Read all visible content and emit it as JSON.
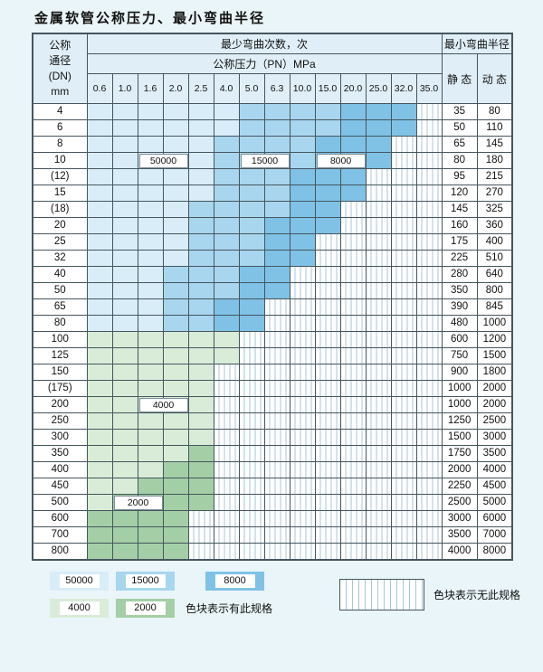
{
  "title": "金属软管公称压力、最小弯曲半径",
  "colors": {
    "page_bg": "#eaf5fa",
    "head_bg": "#e0eff7",
    "border": "#45565e",
    "stripe_line": "#a9c6d4",
    "c50000": "#d8edf8",
    "c15000": "#a8d6ee",
    "c8000": "#7fc2e6",
    "c4000": "#d8ecd8",
    "c2000": "#a4cfa6"
  },
  "table": {
    "header": {
      "dn_lines": [
        "公称",
        "通径",
        "(DN)",
        "mm"
      ],
      "bend_cycles": "最少弯曲次数，次",
      "pressure": "公称压力（PN）MPa",
      "pressures": [
        "0.6",
        "1.0",
        "1.6",
        "2.0",
        "2.5",
        "4.0",
        "5.0",
        "6.3",
        "10.0",
        "15.0",
        "20.0",
        "25.0",
        "32.0",
        "35.0"
      ],
      "radius": "最小弯曲半径",
      "static": "静 态",
      "dynamic": "动 态"
    },
    "rows": [
      {
        "dn": "4",
        "static": "35",
        "dynamic": "80",
        "segments": [
          [
            "c50000",
            6
          ],
          [
            "c15000",
            4
          ],
          [
            "c8000",
            3
          ]
        ]
      },
      {
        "dn": "6",
        "static": "50",
        "dynamic": "110",
        "segments": [
          [
            "c50000",
            6
          ],
          [
            "c15000",
            4
          ],
          [
            "c8000",
            3
          ]
        ]
      },
      {
        "dn": "8",
        "static": "65",
        "dynamic": "145",
        "segments": [
          [
            "c50000",
            5
          ],
          [
            "c15000",
            4
          ],
          [
            "c8000",
            3
          ]
        ]
      },
      {
        "dn": "10",
        "static": "80",
        "dynamic": "180",
        "segments": [
          [
            "c50000",
            5
          ],
          [
            "c15000",
            4
          ],
          [
            "c8000",
            3
          ]
        ]
      },
      {
        "dn": "(12)",
        "static": "95",
        "dynamic": "215",
        "segments": [
          [
            "c50000",
            5
          ],
          [
            "c15000",
            3
          ],
          [
            "c8000",
            3
          ]
        ]
      },
      {
        "dn": "15",
        "static": "120",
        "dynamic": "270",
        "segments": [
          [
            "c50000",
            5
          ],
          [
            "c15000",
            3
          ],
          [
            "c8000",
            3
          ]
        ]
      },
      {
        "dn": "(18)",
        "static": "145",
        "dynamic": "325",
        "segments": [
          [
            "c50000",
            4
          ],
          [
            "c15000",
            4
          ],
          [
            "c8000",
            2
          ]
        ]
      },
      {
        "dn": "20",
        "static": "160",
        "dynamic": "360",
        "segments": [
          [
            "c50000",
            4
          ],
          [
            "c15000",
            3
          ],
          [
            "c8000",
            3
          ]
        ]
      },
      {
        "dn": "25",
        "static": "175",
        "dynamic": "400",
        "segments": [
          [
            "c50000",
            4
          ],
          [
            "c15000",
            3
          ],
          [
            "c8000",
            2
          ]
        ]
      },
      {
        "dn": "32",
        "static": "225",
        "dynamic": "510",
        "segments": [
          [
            "c50000",
            4
          ],
          [
            "c15000",
            3
          ],
          [
            "c8000",
            2
          ]
        ]
      },
      {
        "dn": "40",
        "static": "280",
        "dynamic": "640",
        "segments": [
          [
            "c50000",
            3
          ],
          [
            "c15000",
            3
          ],
          [
            "c8000",
            2
          ]
        ]
      },
      {
        "dn": "50",
        "static": "350",
        "dynamic": "800",
        "segments": [
          [
            "c50000",
            3
          ],
          [
            "c15000",
            3
          ],
          [
            "c8000",
            2
          ]
        ]
      },
      {
        "dn": "65",
        "static": "390",
        "dynamic": "845",
        "segments": [
          [
            "c50000",
            3
          ],
          [
            "c15000",
            2
          ],
          [
            "c8000",
            2
          ]
        ]
      },
      {
        "dn": "80",
        "static": "480",
        "dynamic": "1000",
        "segments": [
          [
            "c50000",
            3
          ],
          [
            "c15000",
            2
          ],
          [
            "c8000",
            2
          ]
        ]
      },
      {
        "dn": "100",
        "static": "600",
        "dynamic": "1200",
        "segments": [
          [
            "c4000",
            6
          ]
        ]
      },
      {
        "dn": "125",
        "static": "750",
        "dynamic": "1500",
        "segments": [
          [
            "c4000",
            6
          ]
        ]
      },
      {
        "dn": "150",
        "static": "900",
        "dynamic": "1800",
        "segments": [
          [
            "c4000",
            5
          ]
        ]
      },
      {
        "dn": "(175)",
        "static": "1000",
        "dynamic": "2000",
        "segments": [
          [
            "c4000",
            5
          ]
        ]
      },
      {
        "dn": "200",
        "static": "1000",
        "dynamic": "2000",
        "segments": [
          [
            "c4000",
            5
          ]
        ]
      },
      {
        "dn": "250",
        "static": "1250",
        "dynamic": "2500",
        "segments": [
          [
            "c4000",
            5
          ]
        ]
      },
      {
        "dn": "300",
        "static": "1500",
        "dynamic": "3000",
        "segments": [
          [
            "c4000",
            5
          ]
        ]
      },
      {
        "dn": "350",
        "static": "1750",
        "dynamic": "3500",
        "segments": [
          [
            "c4000",
            4
          ],
          [
            "c2000",
            1
          ]
        ]
      },
      {
        "dn": "400",
        "static": "2000",
        "dynamic": "4000",
        "segments": [
          [
            "c4000",
            3
          ],
          [
            "c2000",
            2
          ]
        ]
      },
      {
        "dn": "450",
        "static": "2250",
        "dynamic": "4500",
        "segments": [
          [
            "c4000",
            2
          ],
          [
            "c2000",
            3
          ]
        ]
      },
      {
        "dn": "500",
        "static": "2500",
        "dynamic": "5000",
        "segments": [
          [
            "c4000",
            1
          ],
          [
            "c2000",
            4
          ]
        ]
      },
      {
        "dn": "600",
        "static": "3000",
        "dynamic": "6000",
        "segments": [
          [
            "c2000",
            4
          ]
        ]
      },
      {
        "dn": "700",
        "static": "3500",
        "dynamic": "7000",
        "segments": [
          [
            "c2000",
            4
          ]
        ]
      },
      {
        "dn": "800",
        "static": "4000",
        "dynamic": "8000",
        "segments": [
          [
            "c2000",
            4
          ]
        ]
      }
    ]
  },
  "overlays": [
    {
      "label": "50000",
      "row": 3,
      "col": 2,
      "span": 2
    },
    {
      "label": "15000",
      "row": 3,
      "col": 6,
      "span": 2
    },
    {
      "label": "8000",
      "row": 3,
      "col": 9,
      "span": 2
    },
    {
      "label": "4000",
      "row": 18,
      "col": 2,
      "span": 2
    },
    {
      "label": "2000",
      "row": 24,
      "col": 1,
      "span": 2
    }
  ],
  "legend": {
    "items": [
      {
        "label": "50000",
        "key": "c50000"
      },
      {
        "label": "15000",
        "key": "c15000"
      },
      {
        "label": "8000",
        "key": "c8000"
      },
      {
        "label": "4000",
        "key": "c4000"
      },
      {
        "label": "2000",
        "key": "c2000"
      }
    ],
    "has_note": "色块表示有此规格",
    "none_note": "色块表示无此规格"
  }
}
